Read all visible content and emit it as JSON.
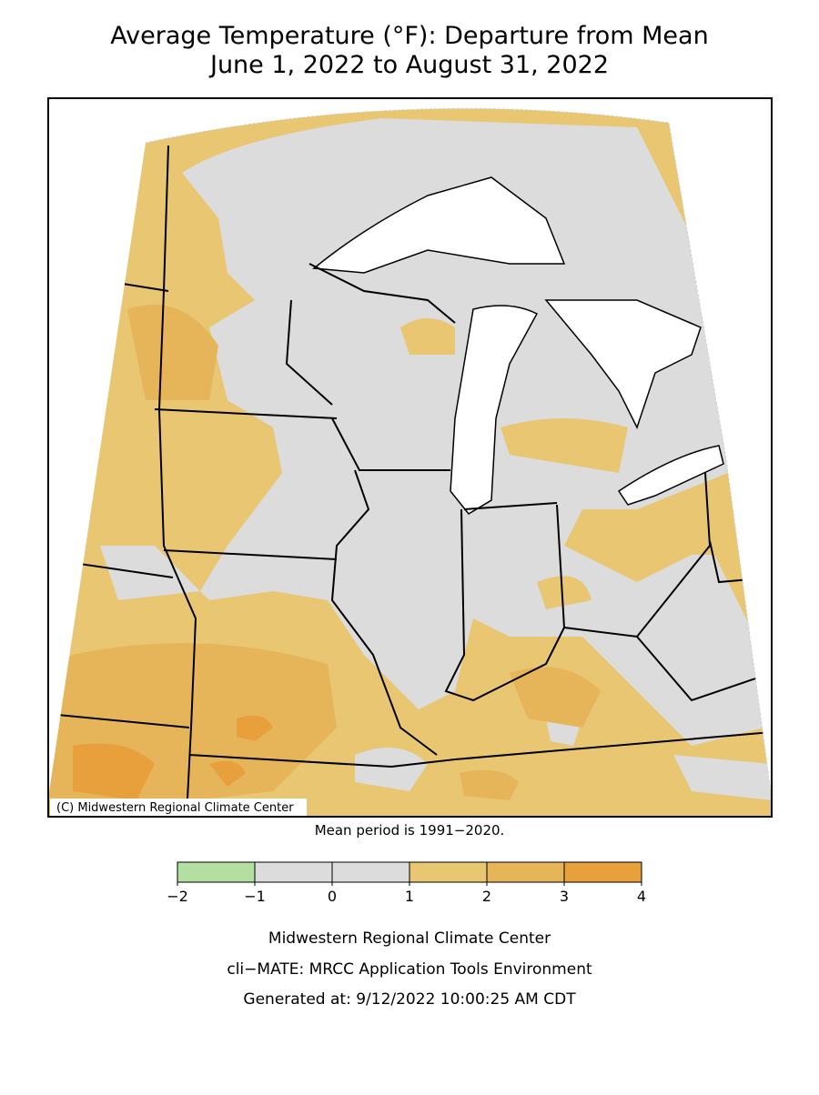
{
  "header": {
    "title": "Average Temperature (°F): Departure from Mean",
    "subtitle": "June 1, 2022 to August 31, 2022"
  },
  "map": {
    "credit": "(C) Midwestern Regional Climate Center",
    "note": "Mean period is 1991−2020."
  },
  "legend": {
    "ticks": [
      {
        "value": -2,
        "label": "−2"
      },
      {
        "value": -1,
        "label": "−1"
      },
      0,
      1,
      2,
      3,
      4
    ],
    "colors": [
      "#b3e0a0",
      "#dcdcdc",
      "#dcdcdc",
      "#e8c672",
      "#e6b459",
      "#e8a03c"
    ]
  },
  "footer": {
    "lines": [
      "Midwestern Regional Climate Center",
      "cli−MATE: MRCC Application Tools Environment",
      "Generated at: 9/12/2022 10:00:25 AM CDT"
    ]
  }
}
